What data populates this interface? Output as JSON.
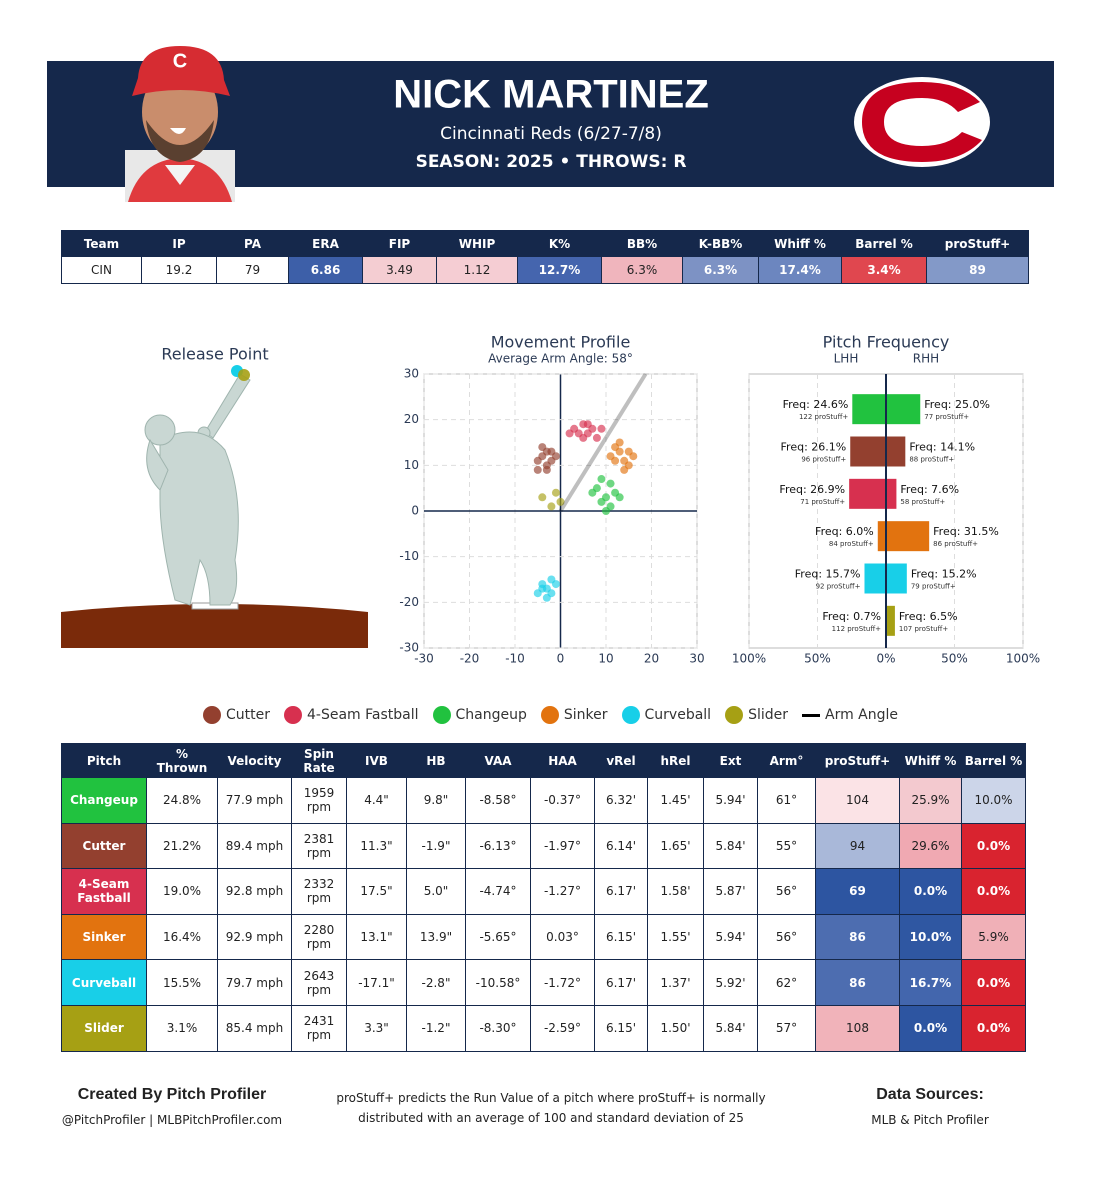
{
  "header": {
    "name": "NICK MARTINEZ",
    "team_line": "Cincinnati Reds (6/27-7/8)",
    "season_line": "SEASON: 2025 • THROWS: R"
  },
  "stats_table": {
    "columns": [
      "Team",
      "IP",
      "PA",
      "ERA",
      "FIP",
      "WHIP",
      "K%",
      "BB%",
      "K-BB%",
      "Whiff %",
      "Barrel %",
      "proStuff+"
    ],
    "rows": [
      [
        "CIN",
        "19.2",
        "79",
        "6.86",
        "3.49",
        "1.12",
        "12.7%",
        "6.3%",
        "6.3%",
        "17.4%",
        "3.4%",
        "89"
      ]
    ],
    "cell_colors": [
      [
        "#ffffff",
        "#ffffff",
        "#ffffff",
        "#3d5fa8",
        "#f4cdd2",
        "#f5cdd3",
        "#4565ae",
        "#f0b5bd",
        "#7d92c4",
        "#6c86bf",
        "#e0474f",
        "#8399c8"
      ]
    ]
  },
  "release_point": {
    "title": "Release Point"
  },
  "chart_data": [
    {
      "type": "scatter",
      "title": "Movement Profile",
      "subtitle": "Average Arm Angle: 58°",
      "xlim": [
        -30,
        30
      ],
      "ylim": [
        -30,
        30
      ],
      "xticks": [
        -30,
        -20,
        -10,
        0,
        10,
        20,
        30
      ],
      "yticks": [
        -30,
        -20,
        -10,
        0,
        10,
        20,
        30
      ],
      "grid": true,
      "series": [
        {
          "name": "Cutter",
          "color": "#93402f",
          "x": [
            -4,
            -3,
            -2,
            -5,
            -3,
            -1,
            -4,
            -2,
            -5,
            -3
          ],
          "values": [
            12,
            10,
            13,
            11,
            9,
            12,
            14,
            11,
            9,
            13
          ]
        },
        {
          "name": "4-Seam Fastball",
          "color": "#d7304f",
          "x": [
            3,
            5,
            6,
            7,
            4,
            8,
            5,
            9,
            2,
            6
          ],
          "values": [
            18,
            19,
            17,
            18,
            17,
            16,
            16,
            18,
            17,
            19
          ]
        },
        {
          "name": "Changeup",
          "color": "#21c23f",
          "x": [
            8,
            10,
            11,
            9,
            12,
            10,
            13,
            9,
            11,
            7
          ],
          "values": [
            5,
            3,
            6,
            2,
            4,
            0,
            3,
            7,
            1,
            4
          ]
        },
        {
          "name": "Sinker",
          "color": "#e2730f",
          "x": [
            12,
            14,
            13,
            15,
            11,
            16,
            13,
            14,
            12,
            15
          ],
          "values": [
            14,
            11,
            13,
            10,
            12,
            12,
            15,
            9,
            11,
            13
          ]
        },
        {
          "name": "Curveball",
          "color": "#18cfe8",
          "x": [
            -4,
            -2,
            -3,
            -5,
            -1,
            -3,
            -4,
            -2
          ],
          "values": [
            -16,
            -18,
            -17,
            -18,
            -16,
            -19,
            -17,
            -15
          ]
        },
        {
          "name": "Slider",
          "color": "#a6a014",
          "x": [
            -4,
            -1,
            0,
            -2
          ],
          "values": [
            3,
            4,
            2,
            1
          ]
        },
        {
          "name": "Arm Angle",
          "color": "#000000",
          "type": "line",
          "x": [
            0,
            18.7
          ],
          "values": [
            0,
            30
          ]
        }
      ]
    },
    {
      "type": "bar",
      "orientation": "horizontal",
      "title": "Pitch Frequency",
      "categories": [
        null,
        null,
        null,
        null,
        null,
        null
      ],
      "colors": [
        "#21c23f",
        "#93402f",
        "#d7304f",
        "#e2730f",
        "#18cfe8",
        "#a6a014"
      ],
      "xlim": [
        -100,
        100
      ],
      "xticks": [
        {
          "value": -100,
          "label": "100%"
        },
        {
          "value": -50,
          "label": "50%"
        },
        {
          "value": 0,
          "label": "0%"
        },
        {
          "value": 50,
          "label": "50%"
        },
        {
          "value": 100,
          "label": "100%"
        }
      ],
      "grid": true,
      "series": [
        {
          "name": "LHH",
          "values": [
            24.6,
            26.1,
            26.9,
            6.0,
            15.7,
            0.7
          ],
          "value_labels": [
            "Freq: 24.6%",
            "Freq: 26.1%",
            "Freq: 26.9%",
            "Freq: 6.0%",
            "Freq: 15.7%",
            "Freq: 0.7%"
          ],
          "stuff_labels": [
            "122 proStuff+",
            "96 proStuff+",
            "71 proStuff+",
            "84 proStuff+",
            "92 proStuff+",
            "112 proStuff+"
          ]
        },
        {
          "name": "RHH",
          "values": [
            25.0,
            14.1,
            7.6,
            31.5,
            15.2,
            6.5
          ],
          "value_labels": [
            "Freq: 25.0%",
            "Freq: 14.1%",
            "Freq: 7.6%",
            "Freq: 31.5%",
            "Freq: 15.2%",
            "Freq: 6.5%"
          ],
          "stuff_labels": [
            "77 proStuff+",
            "88 proStuff+",
            "58 proStuff+",
            "86 proStuff+",
            "79 proStuff+",
            "107 proStuff+"
          ]
        }
      ]
    }
  ],
  "pitch_table": {
    "columns": [
      "Pitch",
      "% Thrown",
      "Velocity",
      "Spin Rate",
      "IVB",
      "HB",
      "VAA",
      "HAA",
      "vRel",
      "hRel",
      "Ext",
      "Arm°",
      "proStuff+",
      "Whiff %",
      "Barrel %"
    ],
    "rows": [
      [
        "Changeup",
        "24.8%",
        "77.9 mph",
        "1959 rpm",
        "4.4\"",
        "9.8\"",
        "-8.58°",
        "-0.37°",
        "6.32'",
        "1.45'",
        "5.94'",
        "61°",
        "104",
        "25.9%",
        "10.0%"
      ],
      [
        "Cutter",
        "21.2%",
        "89.4 mph",
        "2381 rpm",
        "11.3\"",
        "-1.9\"",
        "-6.13°",
        "-1.97°",
        "6.14'",
        "1.65'",
        "5.84'",
        "55°",
        "94",
        "29.6%",
        "0.0%"
      ],
      [
        "4-Seam Fastball",
        "19.0%",
        "92.8 mph",
        "2332 rpm",
        "17.5\"",
        "5.0\"",
        "-4.74°",
        "-1.27°",
        "6.17'",
        "1.58'",
        "5.87'",
        "56°",
        "69",
        "0.0%",
        "0.0%"
      ],
      [
        "Sinker",
        "16.4%",
        "92.9 mph",
        "2280 rpm",
        "13.1\"",
        "13.9\"",
        "-5.65°",
        "0.03°",
        "6.15'",
        "1.55'",
        "5.94'",
        "56°",
        "86",
        "10.0%",
        "5.9%"
      ],
      [
        "Curveball",
        "15.5%",
        "79.7 mph",
        "2643 rpm",
        "-17.1\"",
        "-2.8\"",
        "-10.58°",
        "-1.72°",
        "6.17'",
        "1.37'",
        "5.92'",
        "62°",
        "86",
        "16.7%",
        "0.0%"
      ],
      [
        "Slider",
        "3.1%",
        "85.4 mph",
        "2431 rpm",
        "3.3\"",
        "-1.2\"",
        "-8.30°",
        "-2.59°",
        "6.15'",
        "1.50'",
        "5.84'",
        "57°",
        "108",
        "0.0%",
        "0.0%"
      ]
    ],
    "cell_colors": [
      [
        "#21c23f",
        "#fff",
        "#fff",
        "#fff",
        "#fff",
        "#fff",
        "#fff",
        "#fff",
        "#fff",
        "#fff",
        "#fff",
        "#fff",
        "#fbe3e6",
        "#f3c9cf",
        "#ccd5e9"
      ],
      [
        "#93402f",
        "#fff",
        "#fff",
        "#fff",
        "#fff",
        "#fff",
        "#fff",
        "#fff",
        "#fff",
        "#fff",
        "#fff",
        "#fff",
        "#a9b8d9",
        "#f0a9b2",
        "#d9232f"
      ],
      [
        "#d7304f",
        "#fff",
        "#fff",
        "#fff",
        "#fff",
        "#fff",
        "#fff",
        "#fff",
        "#fff",
        "#fff",
        "#fff",
        "#fff",
        "#2d55a1",
        "#2d55a1",
        "#d9232f"
      ],
      [
        "#e2730f",
        "#fff",
        "#fff",
        "#fff",
        "#fff",
        "#fff",
        "#fff",
        "#fff",
        "#fff",
        "#fff",
        "#fff",
        "#fff",
        "#4d6db0",
        "#2f57a2",
        "#f0b0b7"
      ],
      [
        "#18cfe8",
        "#fff",
        "#fff",
        "#fff",
        "#fff",
        "#fff",
        "#fff",
        "#fff",
        "#fff",
        "#fff",
        "#fff",
        "#fff",
        "#4d6db0",
        "#4366ad",
        "#d9232f"
      ],
      [
        "#a6a014",
        "#fff",
        "#fff",
        "#fff",
        "#fff",
        "#fff",
        "#fff",
        "#fff",
        "#fff",
        "#fff",
        "#fff",
        "#fff",
        "#f1b3ba",
        "#2d55a1",
        "#d9232f"
      ]
    ]
  },
  "footer": {
    "credit_title": "Created By Pitch Profiler",
    "credit_links": "@PitchProfiler | MLBPitchProfiler.com",
    "note": "proStuff+ predicts the Run Value of a pitch where proStuff+ is normally distributed with an average of 100 and standard deviation of 25",
    "sources_title": "Data Sources:",
    "sources": "MLB & Pitch Profiler"
  }
}
